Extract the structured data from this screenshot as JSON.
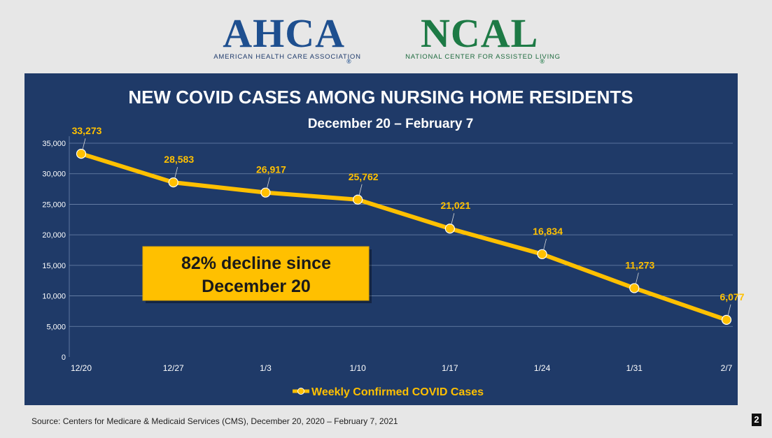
{
  "logos": {
    "ahca": {
      "mark": "AHCA",
      "registered": "®",
      "subtitle": "AMERICAN HEALTH CARE ASSOCIATION"
    },
    "ncal": {
      "mark": "NCAL",
      "registered": "®",
      "subtitle": "NATIONAL CENTER FOR ASSISTED LIVING"
    }
  },
  "callout": {
    "line1": "82% decline since",
    "line2": "December 20"
  },
  "source": "Source: Centers for Medicare & Medicaid Services (CMS), December 20, 2020 – February 7, 2021",
  "page_number": "2",
  "colors": {
    "panel": "#1f3a68",
    "line": "#ffc000",
    "label": "#ffc000",
    "callout_bg": "#ffc000"
  },
  "chart_data": {
    "type": "line",
    "title": "NEW COVID CASES AMONG NURSING HOME RESIDENTS",
    "subtitle": "December 20 – February 7",
    "xlabel": "",
    "ylabel": "",
    "categories": [
      "12/20",
      "12/27",
      "1/3",
      "1/10",
      "1/17",
      "1/24",
      "1/31",
      "2/7"
    ],
    "series": [
      {
        "name": "Weekly Confirmed COVID Cases",
        "values": [
          33273,
          28583,
          26917,
          25762,
          21021,
          16834,
          11273,
          6077
        ],
        "labels": [
          "33,273",
          "28,583",
          "26,917",
          "25,762",
          "21,021",
          "16,834",
          "11,273",
          "6,077"
        ]
      }
    ],
    "ylim": [
      0,
      35000
    ],
    "yticks": [
      0,
      5000,
      10000,
      15000,
      20000,
      25000,
      30000,
      35000
    ],
    "ytick_labels": [
      "0",
      "5,000",
      "10,000",
      "15,000",
      "20,000",
      "25,000",
      "30,000",
      "35,000"
    ],
    "grid": true,
    "legend": "bottom-center"
  }
}
